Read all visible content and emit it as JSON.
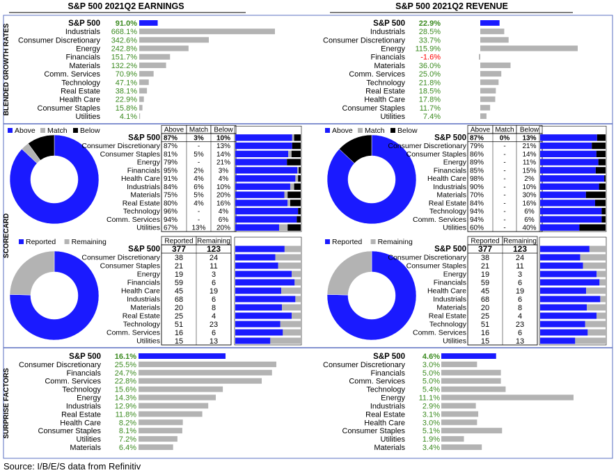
{
  "headers": {
    "earnings": "S&P 500 2021Q2 EARNINGS",
    "revenue": "S&P 500 2021Q2 REVENUE"
  },
  "section_labels": {
    "growth": "BLENDED GROWTH RATES",
    "scorecard": "SCORECARD",
    "surprise": "SURPRISE FACTORS"
  },
  "source": "Source: I/B/E/S data from Refinitiv",
  "colors": {
    "blue": "#1a1aff",
    "gray": "#b3b3b3",
    "black": "#000000",
    "green": "#3a8a1f",
    "red": "#ff0000",
    "rule": "#5a6fc0"
  },
  "legends": {
    "beat": [
      "Above",
      "Match",
      "Below"
    ],
    "reported": [
      "Reported",
      "Remaining"
    ]
  },
  "beat_table_headers": [
    "Above",
    "Match",
    "Below"
  ],
  "reported_table_headers": [
    "Reported",
    "Remaining"
  ],
  "chart_data": [
    {
      "id": "earnings_growth",
      "type": "bar",
      "categories": [
        "S&P 500",
        "Industrials",
        "Consumer Discretionary",
        "Energy",
        "Financials",
        "Materials",
        "Comm. Services",
        "Technology",
        "Real Estate",
        "Health Care",
        "Consumer Staples",
        "Utilities"
      ],
      "values": [
        91.0,
        668.1,
        342.6,
        242.8,
        151.7,
        132.2,
        70.9,
        47.1,
        38.1,
        22.9,
        15.8,
        4.1
      ],
      "labels": [
        "91.0%",
        "668.1%",
        "342.6%",
        "242.8%",
        "151.7%",
        "132.2%",
        "70.9%",
        "47.1%",
        "38.1%",
        "22.9%",
        "15.8%",
        "4.1%"
      ]
    },
    {
      "id": "revenue_growth",
      "type": "bar",
      "categories": [
        "S&P 500",
        "Industrials",
        "Consumer Discretionary",
        "Energy",
        "Financials",
        "Materials",
        "Comm. Services",
        "Technology",
        "Real Estate",
        "Health Care",
        "Consumer Staples",
        "Utilities"
      ],
      "values": [
        22.9,
        28.5,
        33.7,
        115.9,
        -1.6,
        36.0,
        25.0,
        21.8,
        18.5,
        17.8,
        11.7,
        7.4
      ],
      "labels": [
        "22.9%",
        "28.5%",
        "33.7%",
        "115.9%",
        "-1.6%",
        "36.0%",
        "25.0%",
        "21.8%",
        "18.5%",
        "17.8%",
        "11.7%",
        "7.4%"
      ]
    },
    {
      "id": "earnings_beat",
      "type": "table",
      "categories": [
        "S&P 500",
        "Consumer Discretionary",
        "Consumer Staples",
        "Energy",
        "Financials",
        "Health Care",
        "Industrials",
        "Materials",
        "Real Estate",
        "Technology",
        "Comm. Services",
        "Utilities"
      ],
      "above": [
        87,
        87,
        81,
        79,
        95,
        91,
        84,
        75,
        80,
        96,
        94,
        67
      ],
      "match": [
        3,
        0,
        5,
        0,
        2,
        4,
        6,
        5,
        4,
        0,
        0,
        13
      ],
      "below": [
        10,
        13,
        14,
        21,
        3,
        4,
        10,
        20,
        16,
        4,
        6,
        20
      ],
      "cells": [
        [
          "87%",
          "3%",
          "10%"
        ],
        [
          "87%",
          "-",
          "13%"
        ],
        [
          "81%",
          "5%",
          "14%"
        ],
        [
          "79%",
          "-",
          "21%"
        ],
        [
          "95%",
          "2%",
          "3%"
        ],
        [
          "91%",
          "4%",
          "4%"
        ],
        [
          "84%",
          "6%",
          "10%"
        ],
        [
          "75%",
          "5%",
          "20%"
        ],
        [
          "80%",
          "4%",
          "16%"
        ],
        [
          "96%",
          "-",
          "4%"
        ],
        [
          "94%",
          "-",
          "6%"
        ],
        [
          "67%",
          "13%",
          "20%"
        ]
      ]
    },
    {
      "id": "revenue_beat",
      "type": "table",
      "categories": [
        "S&P 500",
        "Consumer Discretionary",
        "Consumer Staples",
        "Energy",
        "Financials",
        "Health Care",
        "Industrials",
        "Materials",
        "Real Estate",
        "Technology",
        "Comm. Services",
        "Utilities"
      ],
      "above": [
        87,
        79,
        86,
        89,
        85,
        98,
        90,
        70,
        84,
        94,
        94,
        60
      ],
      "match": [
        0,
        0,
        0,
        0,
        0,
        0,
        0,
        0,
        0,
        0,
        0,
        0
      ],
      "below": [
        13,
        21,
        14,
        11,
        15,
        2,
        10,
        30,
        16,
        6,
        6,
        40
      ],
      "cells": [
        [
          "87%",
          "0%",
          "13%"
        ],
        [
          "79%",
          "-",
          "21%"
        ],
        [
          "86%",
          "-",
          "14%"
        ],
        [
          "89%",
          "-",
          "11%"
        ],
        [
          "85%",
          "-",
          "15%"
        ],
        [
          "98%",
          "-",
          "2%"
        ],
        [
          "90%",
          "-",
          "10%"
        ],
        [
          "70%",
          "-",
          "30%"
        ],
        [
          "84%",
          "-",
          "16%"
        ],
        [
          "94%",
          "-",
          "6%"
        ],
        [
          "94%",
          "-",
          "6%"
        ],
        [
          "60%",
          "-",
          "40%"
        ]
      ]
    },
    {
      "id": "reported",
      "type": "table",
      "categories": [
        "S&P 500",
        "Consumer Discretionary",
        "Consumer Staples",
        "Energy",
        "Financials",
        "Health Care",
        "Industrials",
        "Materials",
        "Real Estate",
        "Technology",
        "Comm. Services",
        "Utilities"
      ],
      "reported": [
        377,
        38,
        21,
        19,
        59,
        45,
        68,
        20,
        25,
        51,
        16,
        15
      ],
      "remaining": [
        123,
        24,
        11,
        3,
        6,
        19,
        6,
        8,
        4,
        23,
        6,
        13
      ]
    },
    {
      "id": "earnings_surprise",
      "type": "bar",
      "categories": [
        "S&P 500",
        "Consumer Discretionary",
        "Financials",
        "Comm. Services",
        "Technology",
        "Energy",
        "Industrials",
        "Real Estate",
        "Health Care",
        "Consumer Staples",
        "Utilities",
        "Materials"
      ],
      "values": [
        16.1,
        25.5,
        24.7,
        22.8,
        15.6,
        14.3,
        12.9,
        11.8,
        8.2,
        8.1,
        7.2,
        6.4
      ],
      "labels": [
        "16.1%",
        "25.5%",
        "24.7%",
        "22.8%",
        "15.6%",
        "14.3%",
        "12.9%",
        "11.8%",
        "8.2%",
        "8.1%",
        "7.2%",
        "6.4%"
      ]
    },
    {
      "id": "revenue_surprise",
      "type": "bar",
      "categories": [
        "S&P 500",
        "Consumer Discretionary",
        "Financials",
        "Comm. Services",
        "Technology",
        "Energy",
        "Industrials",
        "Real Estate",
        "Health Care",
        "Consumer Staples",
        "Utilities",
        "Materials"
      ],
      "values": [
        4.6,
        3.0,
        5.0,
        5.0,
        5.4,
        11.1,
        2.9,
        3.1,
        3.0,
        5.1,
        1.9,
        3.4
      ],
      "labels": [
        "4.6%",
        "3.0%",
        "5.0%",
        "5.0%",
        "5.4%",
        "11.1%",
        "2.9%",
        "3.1%",
        "3.0%",
        "5.1%",
        "1.9%",
        "3.4%"
      ]
    }
  ]
}
